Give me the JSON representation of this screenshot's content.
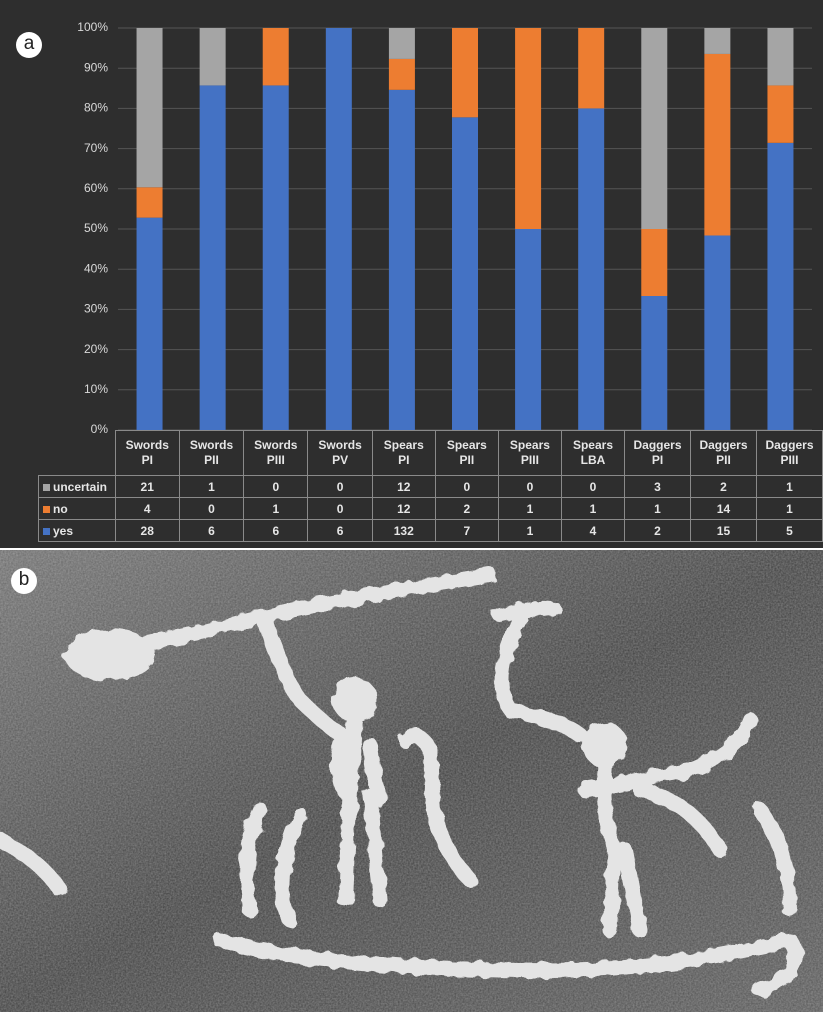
{
  "panel_labels": [
    "a",
    "b"
  ],
  "chart_data": {
    "type": "stacked_bar_percent",
    "categories": [
      "Swords PI",
      "Swords PII",
      "Swords PIII",
      "Swords PV",
      "Spears PI",
      "Spears PII",
      "Spears PIII",
      "Spears LBA",
      "Daggers PI",
      "Daggers PII",
      "Daggers PIII"
    ],
    "series": [
      {
        "name": "yes",
        "color": "#4472c4",
        "values": [
          28,
          6,
          6,
          6,
          132,
          7,
          1,
          4,
          2,
          15,
          5
        ]
      },
      {
        "name": "no",
        "color": "#ed7d31",
        "values": [
          4,
          0,
          1,
          0,
          12,
          2,
          1,
          1,
          1,
          14,
          1
        ]
      },
      {
        "name": "uncertain",
        "color": "#a5a5a5",
        "values": [
          21,
          1,
          0,
          0,
          12,
          0,
          0,
          0,
          3,
          2,
          1
        ]
      }
    ],
    "ylim": [
      0,
      100
    ],
    "yticks": [
      {
        "value": 0,
        "label": "0%"
      },
      {
        "value": 10,
        "label": "10%"
      },
      {
        "value": 20,
        "label": "20%"
      },
      {
        "value": 30,
        "label": "30%"
      },
      {
        "value": 40,
        "label": "40%"
      },
      {
        "value": 50,
        "label": "50%"
      },
      {
        "value": 60,
        "label": "60%"
      },
      {
        "value": 70,
        "label": "70%"
      },
      {
        "value": 80,
        "label": "80%"
      },
      {
        "value": 90,
        "label": "90%"
      },
      {
        "value": 100,
        "label": "100%"
      }
    ],
    "grid": true,
    "data_table": true
  }
}
